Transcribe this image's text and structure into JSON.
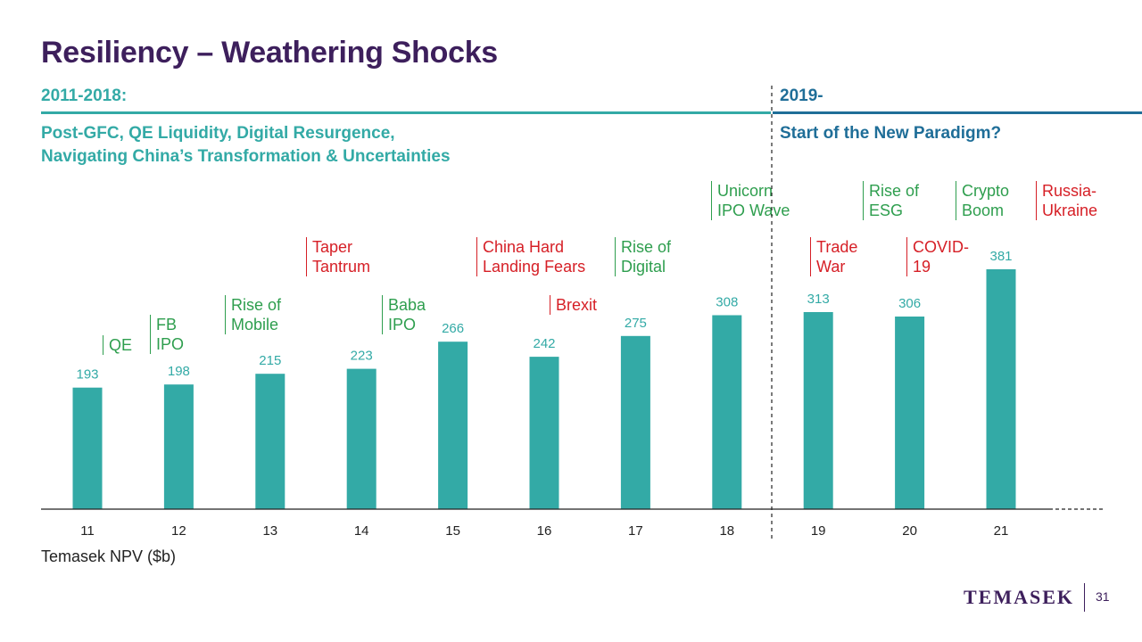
{
  "title": "Resiliency – Weathering Shocks",
  "periods": {
    "left": {
      "label": "2011-2018:",
      "line1": "Post-GFC,  QE Liquidity,  Digital Resurgence,",
      "line2": "Navigating China’s Transformation & Uncertainties"
    },
    "right": {
      "label": "2019-",
      "line1": "Start of the New Paradigm?"
    }
  },
  "events": [
    {
      "id": "qe",
      "lines": [
        "QE"
      ],
      "tone": "green"
    },
    {
      "id": "fb-ipo",
      "lines": [
        "FB",
        "IPO"
      ],
      "tone": "green"
    },
    {
      "id": "rise-of-mobile",
      "lines": [
        "Rise of",
        "Mobile"
      ],
      "tone": "green"
    },
    {
      "id": "taper-tantrum",
      "lines": [
        "Taper",
        "Tantrum"
      ],
      "tone": "red"
    },
    {
      "id": "baba-ipo",
      "lines": [
        "Baba",
        "IPO"
      ],
      "tone": "green"
    },
    {
      "id": "china-hard-landing",
      "lines": [
        "China Hard",
        "Landing Fears"
      ],
      "tone": "red"
    },
    {
      "id": "brexit",
      "lines": [
        "Brexit"
      ],
      "tone": "red"
    },
    {
      "id": "rise-of-digital",
      "lines": [
        "Rise of",
        "Digital"
      ],
      "tone": "green"
    },
    {
      "id": "unicorn-ipo-wave",
      "lines": [
        "Unicorn",
        "IPO Wave"
      ],
      "tone": "green"
    },
    {
      "id": "trade-war",
      "lines": [
        "Trade",
        "War"
      ],
      "tone": "red"
    },
    {
      "id": "rise-of-esg",
      "lines": [
        "Rise of",
        "ESG"
      ],
      "tone": "green"
    },
    {
      "id": "covid-19",
      "lines": [
        "COVID-",
        "19"
      ],
      "tone": "red"
    },
    {
      "id": "crypto-boom",
      "lines": [
        "Crypto",
        "Boom"
      ],
      "tone": "green"
    },
    {
      "id": "russia-ukraine",
      "lines": [
        "Russia-",
        "Ukraine"
      ],
      "tone": "red"
    }
  ],
  "colors": {
    "bar": "#33aaa6",
    "green": "#2e9e4e",
    "red": "#d61f26",
    "brand": "#3d1f5c",
    "accent_right": "#1f6e98"
  },
  "chart_data": {
    "type": "bar",
    "categories": [
      "11",
      "12",
      "13",
      "14",
      "15",
      "16",
      "17",
      "18",
      "19",
      "20",
      "21"
    ],
    "values": [
      193,
      198,
      215,
      223,
      266,
      242,
      275,
      308,
      313,
      306,
      381
    ],
    "ylabel": "Temasek NPV ($b)",
    "ylim": [
      0,
      381
    ],
    "grid": false,
    "divider_after_category": "18"
  },
  "footer": {
    "logo": "TEMASEK",
    "page": "31"
  }
}
